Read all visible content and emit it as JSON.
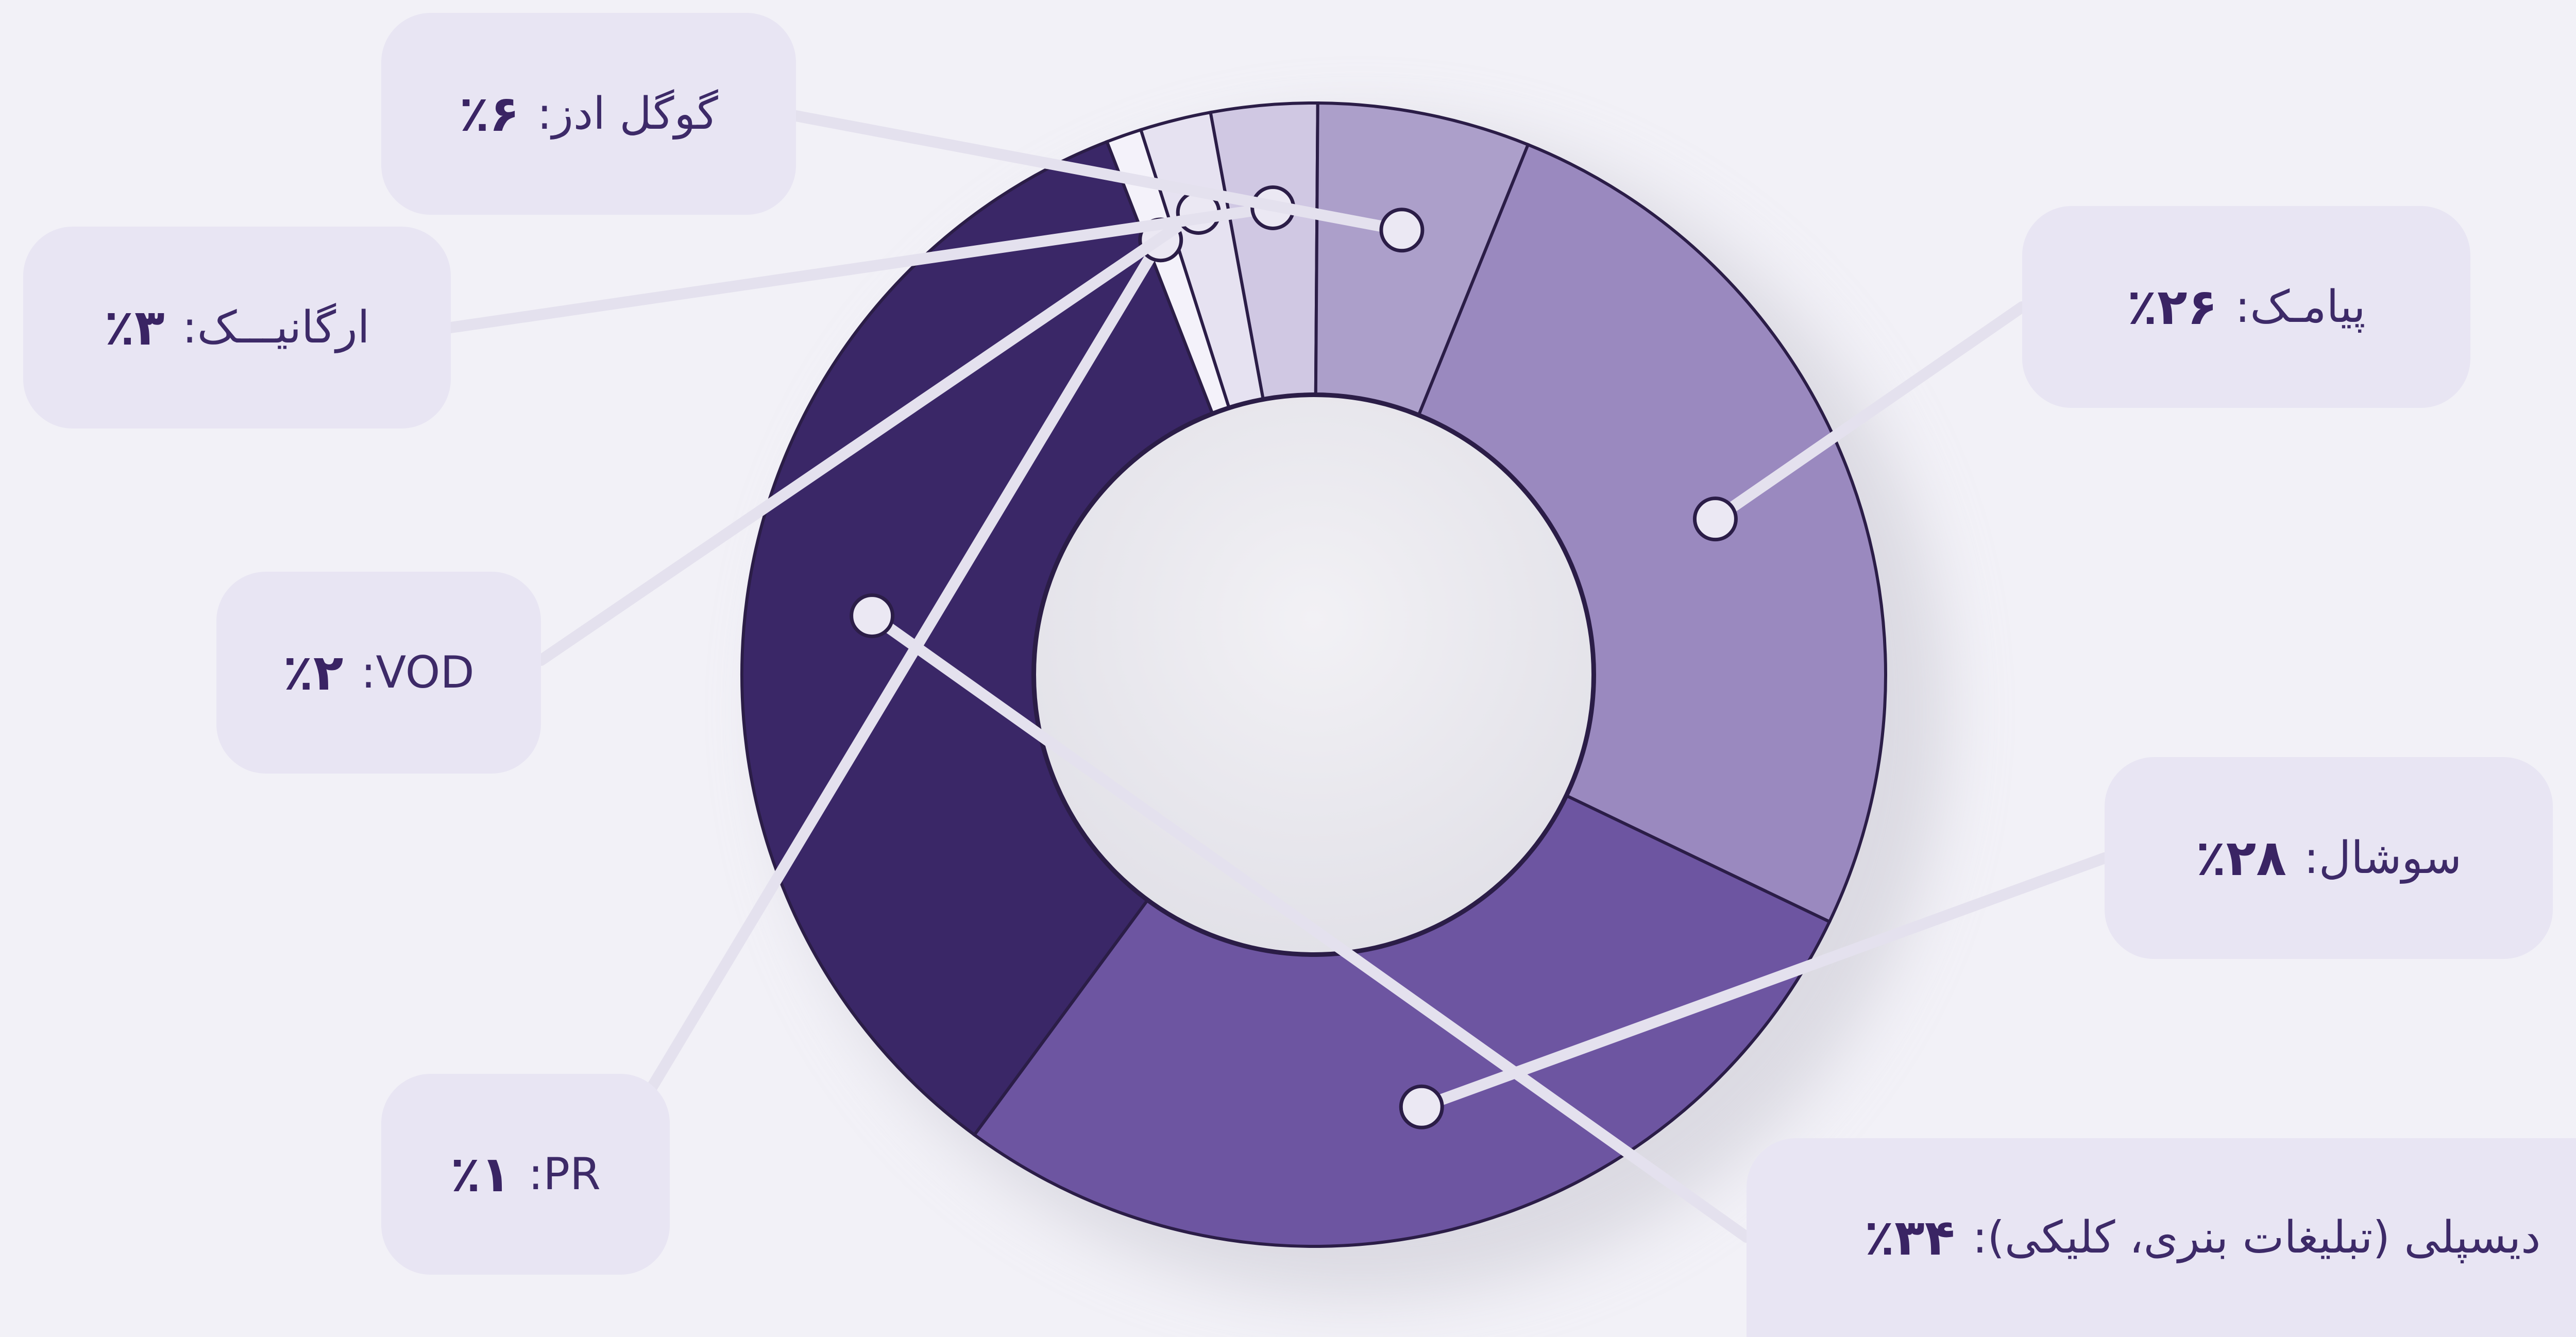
{
  "chart_data": {
    "type": "pie",
    "subtype": "donut",
    "slices": [
      {
        "label": "پیامـک",
        "percent_text": "٪۲۶",
        "value": 26,
        "color": "#9a89bf"
      },
      {
        "label": "سوشال",
        "percent_text": "٪۲۸",
        "value": 28,
        "color": "#6d55a1"
      },
      {
        "label": "دیسپلی (تبلیغات بنری، کلیکی)",
        "percent_text": "٪۳۴",
        "value": 34,
        "color": "#3a2767"
      },
      {
        "label": "PR",
        "percent_text": "٪۱",
        "value": 1,
        "color": "#f4f2fa"
      },
      {
        "label": "VOD",
        "percent_text": "٪۲",
        "value": 2,
        "color": "#e6e2f1"
      },
      {
        "label": "ارگانیـــک",
        "percent_text": "٪۳",
        "value": 3,
        "color": "#d0c8e3"
      },
      {
        "label": "گوگل ادز",
        "percent_text": "٪۶",
        "value": 6,
        "color": "#ac9fca"
      }
    ],
    "legend": "callouts around the donut",
    "title": ""
  }
}
